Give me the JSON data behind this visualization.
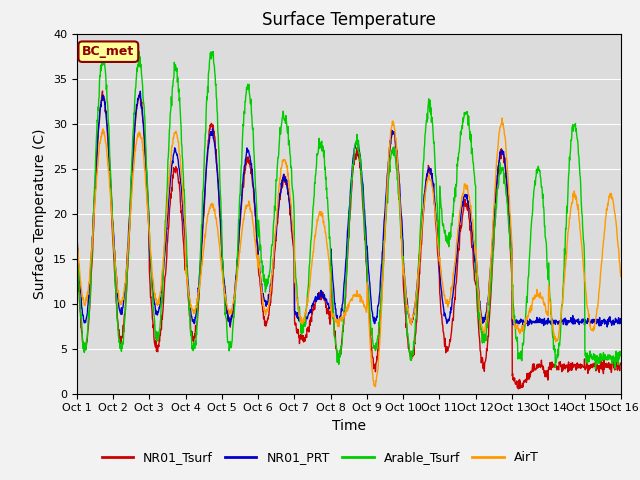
{
  "title": "Surface Temperature",
  "xlabel": "Time",
  "ylabel": "Surface Temperature (C)",
  "annotation": "BC_met",
  "ylim": [
    0,
    40
  ],
  "xlim": [
    0,
    15
  ],
  "x_tick_labels": [
    "Oct 1",
    "Oct 2",
    "Oct 3",
    "Oct 4",
    "Oct 5",
    "Oct 6",
    "Oct 7",
    "Oct 8",
    "Oct 9",
    "Oct 10",
    "Oct 11",
    "Oct 12",
    "Oct 13",
    "Oct 14",
    "Oct 15",
    "Oct 16"
  ],
  "legend_labels": [
    "NR01_Tsurf",
    "NR01_PRT",
    "Arable_Tsurf",
    "AirT"
  ],
  "line_colors": [
    "#cc0000",
    "#0000cc",
    "#00cc00",
    "#ff9900"
  ],
  "fig_background": "#f2f2f2",
  "plot_background": "#dcdcdc",
  "title_fontsize": 12,
  "axis_fontsize": 10,
  "tick_fontsize": 8,
  "peaks_NR01_Tsurf": [
    33,
    33,
    25,
    30,
    26,
    24,
    11,
    27,
    29,
    25,
    21,
    27,
    3,
    3,
    3
  ],
  "valleys_NR01_Tsurf": [
    5,
    6,
    5,
    6,
    8,
    8,
    6,
    4,
    3,
    4,
    5,
    3,
    1,
    3,
    3
  ],
  "peaks_NR01_PRT": [
    33,
    33,
    27,
    29,
    27,
    24,
    11,
    28,
    29,
    25,
    22,
    27,
    8,
    8,
    8
  ],
  "valleys_NR01_PRT": [
    8,
    9,
    9,
    8,
    8,
    10,
    8,
    8,
    8,
    8,
    8,
    8,
    8,
    8,
    8
  ],
  "peaks_Arable_Tsurf": [
    37,
    37,
    36,
    38,
    34,
    31,
    28,
    28,
    27,
    32,
    31,
    25,
    25,
    30,
    4
  ],
  "valleys_Arable_Tsurf": [
    5,
    5,
    6,
    5,
    5,
    12,
    7,
    4,
    5,
    4,
    17,
    6,
    4,
    4,
    4
  ],
  "peaks_AirT": [
    29,
    29,
    29,
    21,
    21,
    26,
    20,
    11,
    30,
    24,
    23,
    30,
    11,
    22,
    22
  ],
  "valleys_AirT": [
    10,
    10,
    10,
    9,
    9,
    9,
    8,
    8,
    1,
    8,
    10,
    7,
    7,
    6,
    7
  ]
}
